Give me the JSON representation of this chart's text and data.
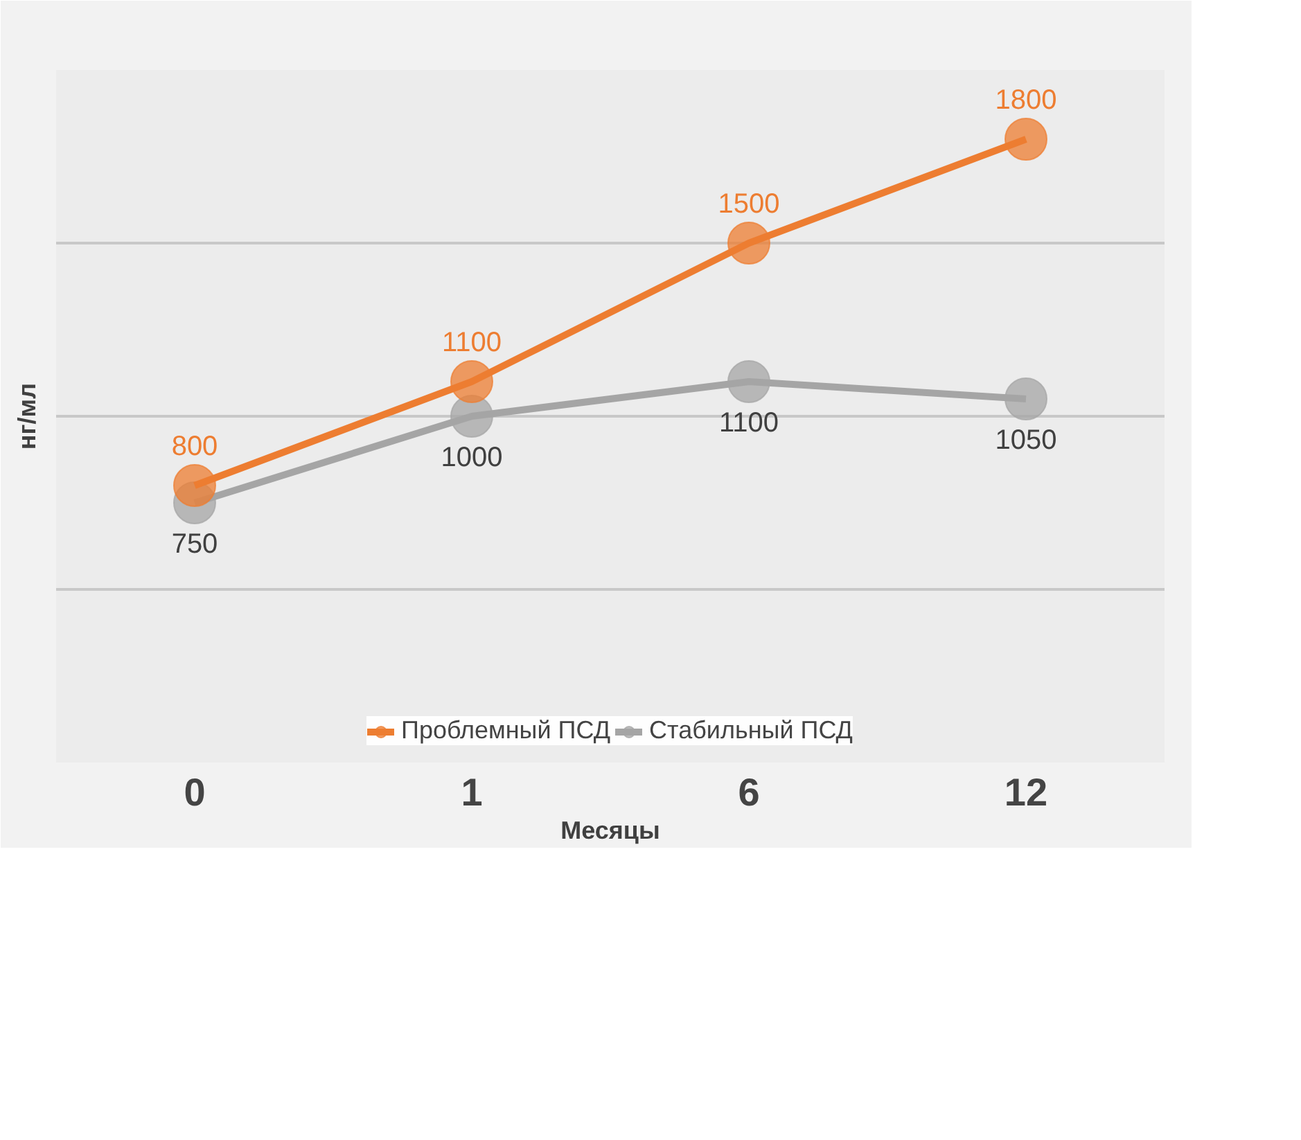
{
  "chart_data": {
    "type": "line",
    "xlabel": "Месяцы",
    "ylabel": "нг/мл",
    "categories": [
      "0",
      "1",
      "6",
      "12"
    ],
    "series": [
      {
        "name": "Проблемный ПСД",
        "color": "#ed7d31",
        "values": [
          800,
          1100,
          1500,
          1800
        ]
      },
      {
        "name": "Стабильный ПСД",
        "color": "#a5a5a5",
        "values": [
          750,
          1000,
          1100,
          1050
        ]
      }
    ],
    "ylim": [
      0,
      2000
    ],
    "yticks": [
      {
        "value": 0,
        "label": null
      },
      {
        "value": 500,
        "label": null
      },
      {
        "value": 1000,
        "label": null
      },
      {
        "value": 1500,
        "label": null
      },
      {
        "value": 2000,
        "label": null
      }
    ],
    "tick_labels": "x",
    "grid": "y",
    "legend": "bottom",
    "marker": "circle",
    "line_style": "solid",
    "data_labels": true
  }
}
